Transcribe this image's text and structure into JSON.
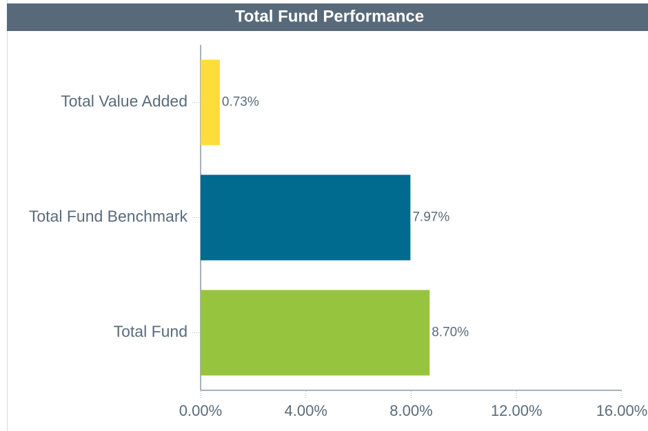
{
  "chart_data": {
    "type": "bar",
    "orientation": "horizontal",
    "title": "Total Fund Performance",
    "categories": [
      "Total Value Added",
      "Total Fund Benchmark",
      "Total Fund"
    ],
    "values": [
      0.73,
      7.97,
      8.7
    ],
    "value_labels": [
      "0.73%",
      "7.97%",
      "8.70%"
    ],
    "colors": [
      "#fddd3a",
      "#006a8f",
      "#97c43e"
    ],
    "xlim": [
      0,
      16
    ],
    "xticks": [
      {
        "value": 0,
        "label": "0.00%"
      },
      {
        "value": 4,
        "label": "4.00%"
      },
      {
        "value": 8,
        "label": "8.00%"
      },
      {
        "value": 12,
        "label": "12.00%"
      },
      {
        "value": 16,
        "label": "16.00%"
      }
    ],
    "grid": false
  }
}
